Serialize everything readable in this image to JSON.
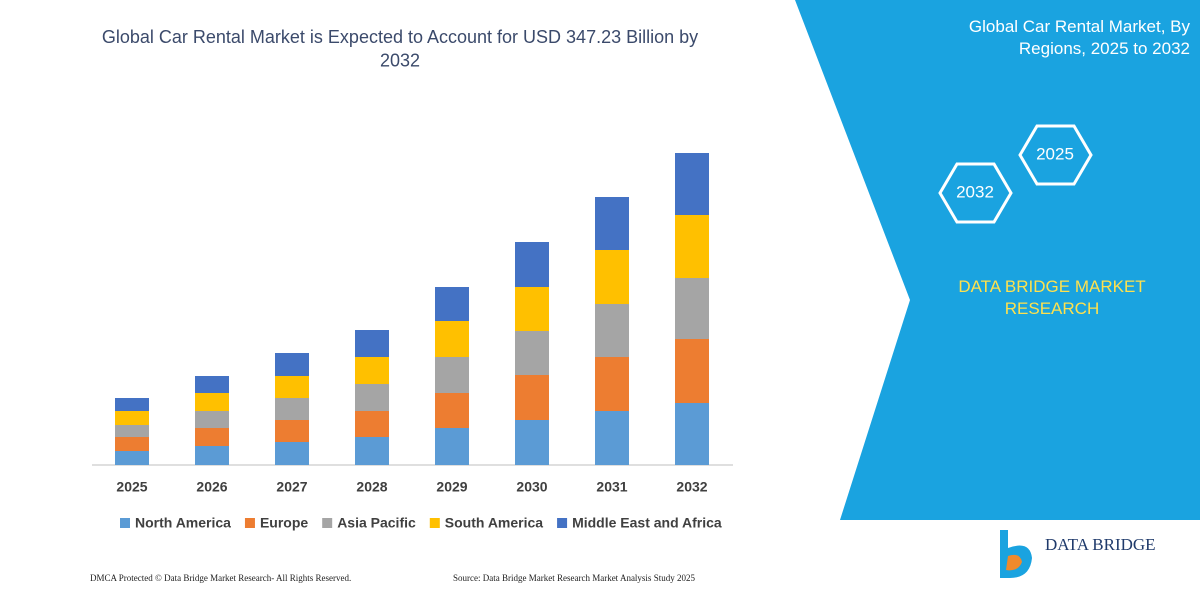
{
  "chart_data": {
    "type": "stacked-bar",
    "title": "Global Car Rental Market is Expected to Account for USD 347.23 Billion by 2032",
    "categories": [
      "2025",
      "2026",
      "2027",
      "2028",
      "2029",
      "2030",
      "2031",
      "2032"
    ],
    "series": [
      {
        "name": "North America",
        "color": "#5b9bd5",
        "values": [
          14,
          19,
          23,
          28,
          37,
          45,
          54,
          62
        ]
      },
      {
        "name": "Europe",
        "color": "#ed7d31",
        "values": [
          14,
          18,
          22,
          26,
          35,
          45,
          54,
          64
        ]
      },
      {
        "name": "Asia Pacific",
        "color": "#a5a5a5",
        "values": [
          12,
          17,
          22,
          27,
          36,
          44,
          53,
          61
        ]
      },
      {
        "name": "South America",
        "color": "#ffc000",
        "values": [
          14,
          18,
          22,
          27,
          36,
          44,
          54,
          63
        ]
      },
      {
        "name": "Middle East and Africa",
        "color": "#4472c4",
        "values": [
          13,
          17,
          23,
          27,
          34,
          45,
          53,
          62
        ]
      }
    ]
  },
  "side_panel": {
    "title": "Global Car Rental Market, By Regions, 2025 to 2032",
    "hexagons": [
      "2025",
      "2032"
    ],
    "brand": "DATA BRIDGE MARKET RESEARCH"
  },
  "footer": {
    "left": "DMCA Protected © Data Bridge Market Research-  All Rights Reserved.",
    "right": "Source: Data Bridge Market Research  Market Analysis Study 2025"
  },
  "logo": {
    "text": "DATA BRIDGE"
  }
}
